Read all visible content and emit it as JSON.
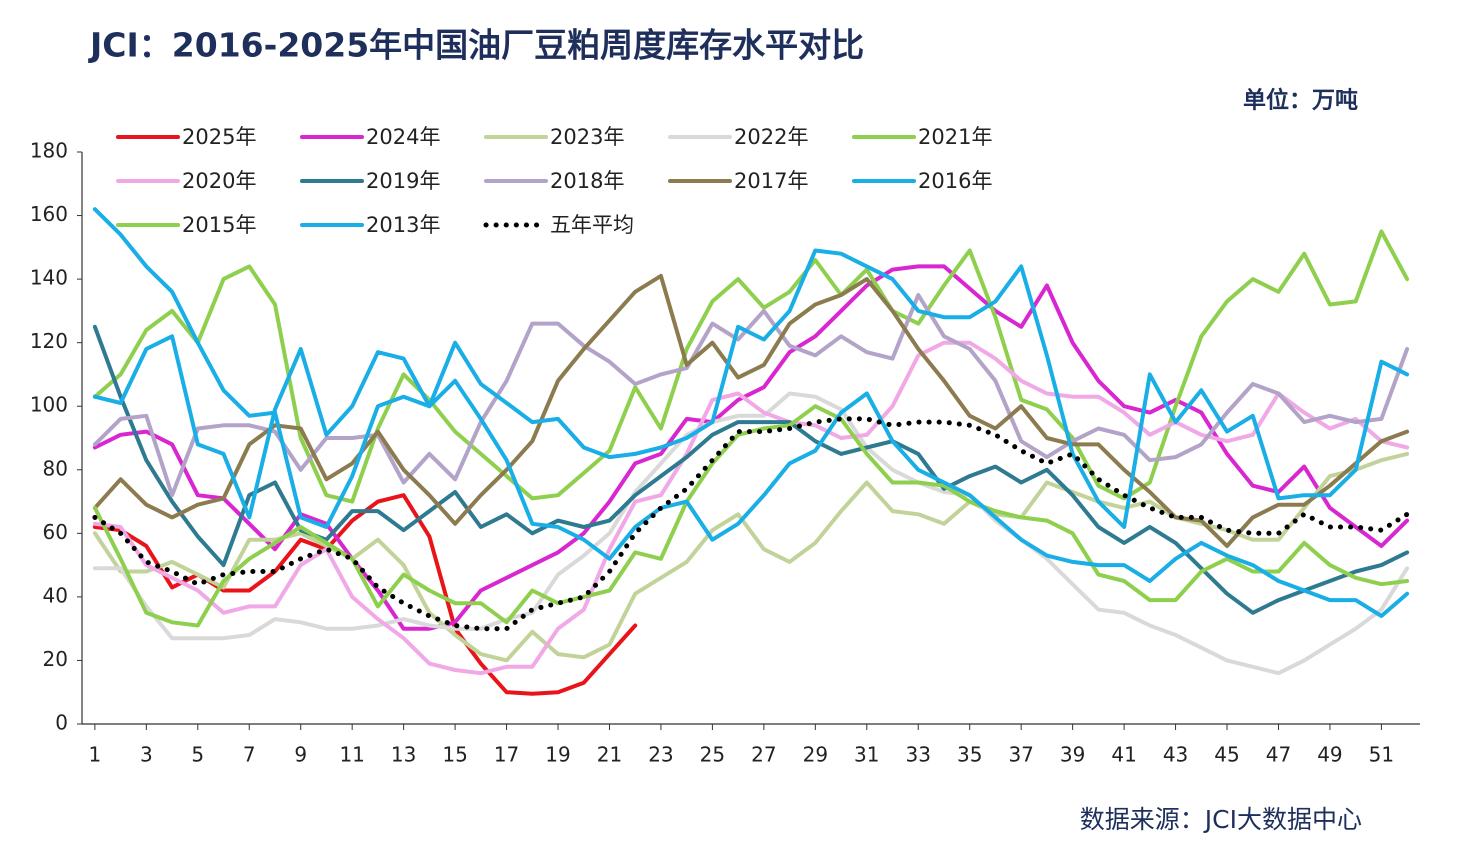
{
  "chart_data": {
    "type": "line",
    "title": "JCI：2016-2025年中国油厂豆粕周度库存水平对比",
    "unit": "单位：万吨",
    "source": "数据来源：JCI大数据中心",
    "x": [
      1,
      2,
      3,
      4,
      5,
      6,
      7,
      8,
      9,
      10,
      11,
      12,
      13,
      14,
      15,
      16,
      17,
      18,
      19,
      20,
      21,
      22,
      23,
      24,
      25,
      26,
      27,
      28,
      29,
      30,
      31,
      32,
      33,
      34,
      35,
      36,
      37,
      38,
      39,
      40,
      41,
      42,
      43,
      44,
      45,
      46,
      47,
      48,
      49,
      50,
      51,
      52
    ],
    "xlim": [
      0.5,
      52.5
    ],
    "xticks": [
      1,
      3,
      5,
      7,
      9,
      11,
      13,
      15,
      17,
      19,
      21,
      23,
      25,
      27,
      29,
      31,
      33,
      35,
      37,
      39,
      41,
      43,
      45,
      47,
      49,
      51
    ],
    "ylim": [
      0,
      180
    ],
    "yticks": [
      0,
      20,
      40,
      60,
      80,
      100,
      120,
      140,
      160,
      180
    ],
    "series": [
      {
        "name": "2025年",
        "color": "#e8141a",
        "values": [
          62,
          61,
          56,
          43,
          47,
          42,
          42,
          48,
          58,
          55,
          64,
          70,
          72,
          59,
          30,
          19,
          10,
          9.5,
          10,
          13,
          22,
          31,
          null,
          null,
          null,
          null,
          null,
          null,
          null,
          null,
          null,
          null,
          null,
          null,
          null,
          null,
          null,
          null,
          null,
          null,
          null,
          null,
          null,
          null,
          null,
          null,
          null,
          null,
          null,
          null,
          null,
          null
        ]
      },
      {
        "name": "2024年",
        "color": "#d826d1",
        "values": [
          87,
          91,
          92,
          88,
          72,
          71,
          63,
          55,
          66,
          63,
          52,
          42,
          30,
          30,
          32,
          42,
          46,
          50,
          54,
          60,
          70,
          82,
          85,
          96,
          95,
          102,
          106,
          117,
          122,
          130,
          138,
          143,
          144,
          144,
          137,
          130,
          125,
          138,
          120,
          108,
          100,
          98,
          102,
          98,
          85,
          75,
          73,
          81,
          68,
          62,
          56,
          64
        ]
      },
      {
        "name": "2023年",
        "color": "#c2d39a",
        "values": [
          60,
          48,
          48,
          51,
          47,
          43,
          58,
          58,
          60,
          56,
          52,
          58,
          50,
          35,
          28,
          22,
          20,
          29,
          22,
          21,
          25,
          41,
          46,
          51,
          61,
          66,
          55,
          51,
          57,
          67,
          76,
          67,
          66,
          63,
          70,
          66,
          65,
          76,
          73,
          70,
          68,
          70,
          65,
          63,
          61,
          58,
          58,
          68,
          78,
          80,
          83,
          85
        ]
      },
      {
        "name": "2022年",
        "color": "#d9d9d9",
        "values": [
          49,
          49,
          37,
          27,
          27,
          27,
          28,
          33,
          32,
          30,
          30,
          31,
          33,
          31,
          30,
          30,
          33,
          35,
          47,
          53,
          60,
          73,
          82,
          91,
          95,
          97,
          97,
          104,
          103,
          99,
          87,
          80,
          76,
          73,
          72,
          64,
          58,
          52,
          44,
          36,
          35,
          31,
          28,
          24,
          20,
          18,
          16,
          20,
          25,
          30,
          36,
          49
        ]
      },
      {
        "name": "2021年",
        "color": "#8fcf4e",
        "values": [
          103,
          110,
          124,
          130,
          120,
          140,
          144,
          132,
          90,
          72,
          70,
          93,
          110,
          102,
          92,
          85,
          78,
          71,
          72,
          79,
          86,
          106,
          93,
          118,
          133,
          140,
          131,
          136,
          146,
          135,
          143,
          130,
          126,
          138,
          149,
          128,
          102,
          99,
          90,
          75,
          71,
          76,
          100,
          122,
          133,
          140,
          136,
          148,
          132,
          133,
          155,
          140
        ]
      },
      {
        "name": "2020年",
        "color": "#f0a8e6",
        "values": [
          63,
          62,
          50,
          46,
          42,
          35,
          37,
          37,
          50,
          55,
          40,
          33,
          27,
          19,
          17,
          16,
          18,
          18,
          30,
          36,
          55,
          70,
          72,
          85,
          102,
          104,
          98,
          95,
          94,
          90,
          91,
          100,
          116,
          120,
          120,
          115,
          108,
          104,
          103,
          103,
          98,
          91,
          95,
          91,
          89,
          91,
          104,
          98,
          93,
          96,
          89,
          87
        ]
      },
      {
        "name": "2019年",
        "color": "#2e7a91",
        "values": [
          125,
          103,
          83,
          70,
          59,
          50,
          72,
          76,
          61,
          58,
          67,
          67,
          61,
          67,
          73,
          62,
          66,
          60,
          64,
          62,
          64,
          72,
          78,
          84,
          91,
          95,
          95,
          95,
          89,
          85,
          87,
          89,
          85,
          74,
          78,
          81,
          76,
          80,
          72,
          62,
          57,
          62,
          57,
          49,
          41,
          35,
          39,
          42,
          45,
          48,
          50,
          54
        ]
      },
      {
        "name": "2018年",
        "color": "#b3a3c9",
        "values": [
          88,
          96,
          97,
          72,
          93,
          94,
          94,
          92,
          80,
          90,
          90,
          91,
          76,
          85,
          77,
          95,
          108,
          126,
          126,
          119,
          114,
          107,
          110,
          112,
          126,
          121,
          130,
          119,
          116,
          122,
          117,
          115,
          135,
          122,
          118,
          108,
          89,
          84,
          89,
          93,
          91,
          83,
          84,
          88,
          98,
          107,
          104,
          95,
          97,
          95,
          96,
          118
        ]
      },
      {
        "name": "2017年",
        "color": "#8c7b4f",
        "values": [
          68,
          77,
          69,
          65,
          69,
          71,
          88,
          94,
          93,
          77,
          82,
          92,
          80,
          72,
          63,
          72,
          80,
          89,
          108,
          118,
          127,
          136,
          141,
          113,
          120,
          109,
          113,
          126,
          132,
          135,
          140,
          130,
          118,
          108,
          97,
          93,
          100,
          90,
          88,
          88,
          80,
          73,
          65,
          64,
          56,
          65,
          69,
          69,
          75,
          82,
          89,
          92
        ]
      },
      {
        "name": "2016年",
        "color": "#19aee6",
        "values": [
          162,
          154,
          144,
          136,
          120,
          105,
          97,
          98,
          65,
          62,
          78,
          100,
          103,
          100,
          120,
          107,
          101,
          95,
          96,
          87,
          84,
          85,
          87,
          90,
          95,
          125,
          121,
          130,
          149,
          148,
          144,
          140,
          130,
          128,
          128,
          133,
          144,
          116,
          85,
          70,
          62,
          110,
          95,
          105,
          92,
          97,
          71,
          72,
          72,
          80,
          114,
          110
        ]
      },
      {
        "name": "2015年",
        "color": "#8fcf4e",
        "values": [
          68,
          52,
          35,
          32,
          31,
          45,
          52,
          57,
          62,
          57,
          52,
          37,
          47,
          42,
          38,
          38,
          32,
          42,
          38,
          40,
          42,
          54,
          52,
          70,
          82,
          91,
          93,
          94,
          100,
          96,
          85,
          76,
          76,
          75,
          70,
          67,
          65,
          64,
          60,
          47,
          45,
          39,
          39,
          48,
          52,
          48,
          48,
          57,
          50,
          46,
          44,
          45
        ]
      },
      {
        "name": "2013年",
        "color": "#19aee6",
        "values": [
          103,
          101,
          118,
          122,
          88,
          85,
          65,
          99,
          118,
          91,
          100,
          117,
          115,
          100,
          108,
          96,
          83,
          63,
          62,
          58,
          52,
          62,
          68,
          70,
          58,
          63,
          72,
          82,
          86,
          98,
          104,
          89,
          80,
          76,
          72,
          65,
          58,
          53,
          51,
          50,
          50,
          45,
          52,
          57,
          53,
          50,
          45,
          42,
          39,
          39,
          34,
          41
        ]
      },
      {
        "name": "五年平均",
        "color": "#000000",
        "dash": "dotted",
        "values": [
          65,
          60,
          51,
          48,
          44,
          47,
          48,
          48,
          52,
          55,
          52,
          43,
          38,
          34,
          31,
          30,
          30,
          36,
          38,
          40,
          48,
          60,
          68,
          74,
          83,
          92,
          92,
          93,
          95,
          96,
          96,
          94,
          95,
          95,
          94,
          91,
          86,
          82,
          85,
          77,
          72,
          68,
          65,
          65,
          61,
          60,
          60,
          66,
          62,
          62,
          61,
          66
        ]
      }
    ]
  }
}
